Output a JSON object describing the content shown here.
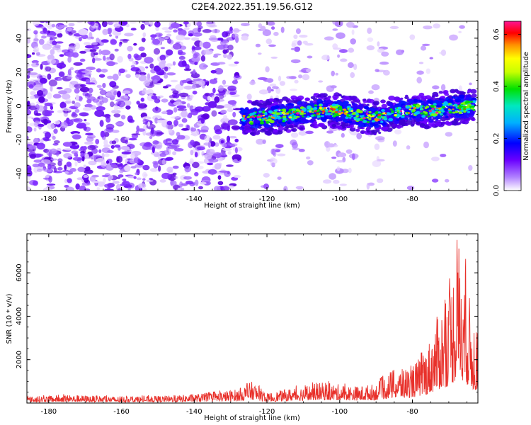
{
  "chart_data": [
    {
      "type": "heatmap",
      "title": "C2E4.2022.351.19.56.G12",
      "xlabel": "Height of straight line (km)",
      "ylabel": "Frequency (Hz)",
      "xlim": [
        -186,
        -62
      ],
      "ylim": [
        -50,
        50
      ],
      "x_ticks": [
        -180,
        -160,
        -140,
        -120,
        -100,
        -80
      ],
      "y_ticks": [
        -40,
        -20,
        0,
        20,
        40
      ],
      "colorbar": {
        "label": "Normalized spectral amplitude",
        "range": [
          0.0,
          0.65
        ],
        "ticks": [
          0.0,
          0.2,
          0.4,
          0.6
        ],
        "colors": [
          "#ffffff",
          "#8a2be2",
          "#0000ff",
          "#00e5ff",
          "#00e000",
          "#ffff00",
          "#ff8c00",
          "#ff0000",
          "#ff1493"
        ]
      },
      "signal_track": [
        {
          "x": -127,
          "y": -7.5
        },
        {
          "x": -120,
          "y": -6.5
        },
        {
          "x": -115,
          "y": -5.5
        },
        {
          "x": -110,
          "y": -4.0
        },
        {
          "x": -105,
          "y": -2.5
        },
        {
          "x": -100,
          "y": -3.0
        },
        {
          "x": -95,
          "y": -5.5
        },
        {
          "x": -90,
          "y": -7.0
        },
        {
          "x": -85,
          "y": -4.0
        },
        {
          "x": -80,
          "y": -2.5
        },
        {
          "x": -75,
          "y": -3.0
        },
        {
          "x": -70,
          "y": -1.0
        },
        {
          "x": -63,
          "y": 0.0
        }
      ]
    },
    {
      "type": "line",
      "xlabel": "Height of straight line (km)",
      "ylabel": "SNR (10 * v/v)",
      "xlim": [
        -186,
        -62
      ],
      "ylim": [
        0,
        7800
      ],
      "x_ticks": [
        -180,
        -160,
        -140,
        -120,
        -100,
        -80
      ],
      "y_ticks": [
        2000,
        4000,
        6000
      ],
      "color": "#e8302a",
      "envelope": [
        {
          "x": -186,
          "y": 300
        },
        {
          "x": -175,
          "y": 380
        },
        {
          "x": -160,
          "y": 300
        },
        {
          "x": -145,
          "y": 350
        },
        {
          "x": -135,
          "y": 480
        },
        {
          "x": -128,
          "y": 650
        },
        {
          "x": -124,
          "y": 1000
        },
        {
          "x": -120,
          "y": 450
        },
        {
          "x": -113,
          "y": 700
        },
        {
          "x": -105,
          "y": 950
        },
        {
          "x": -95,
          "y": 780
        },
        {
          "x": -90,
          "y": 900
        },
        {
          "x": -86,
          "y": 1500
        },
        {
          "x": -80,
          "y": 1700
        },
        {
          "x": -76,
          "y": 2600
        },
        {
          "x": -73,
          "y": 4100
        },
        {
          "x": -70,
          "y": 5200
        },
        {
          "x": -67,
          "y": 7800
        },
        {
          "x": -64,
          "y": 4600
        },
        {
          "x": -62,
          "y": 3200
        }
      ]
    }
  ]
}
